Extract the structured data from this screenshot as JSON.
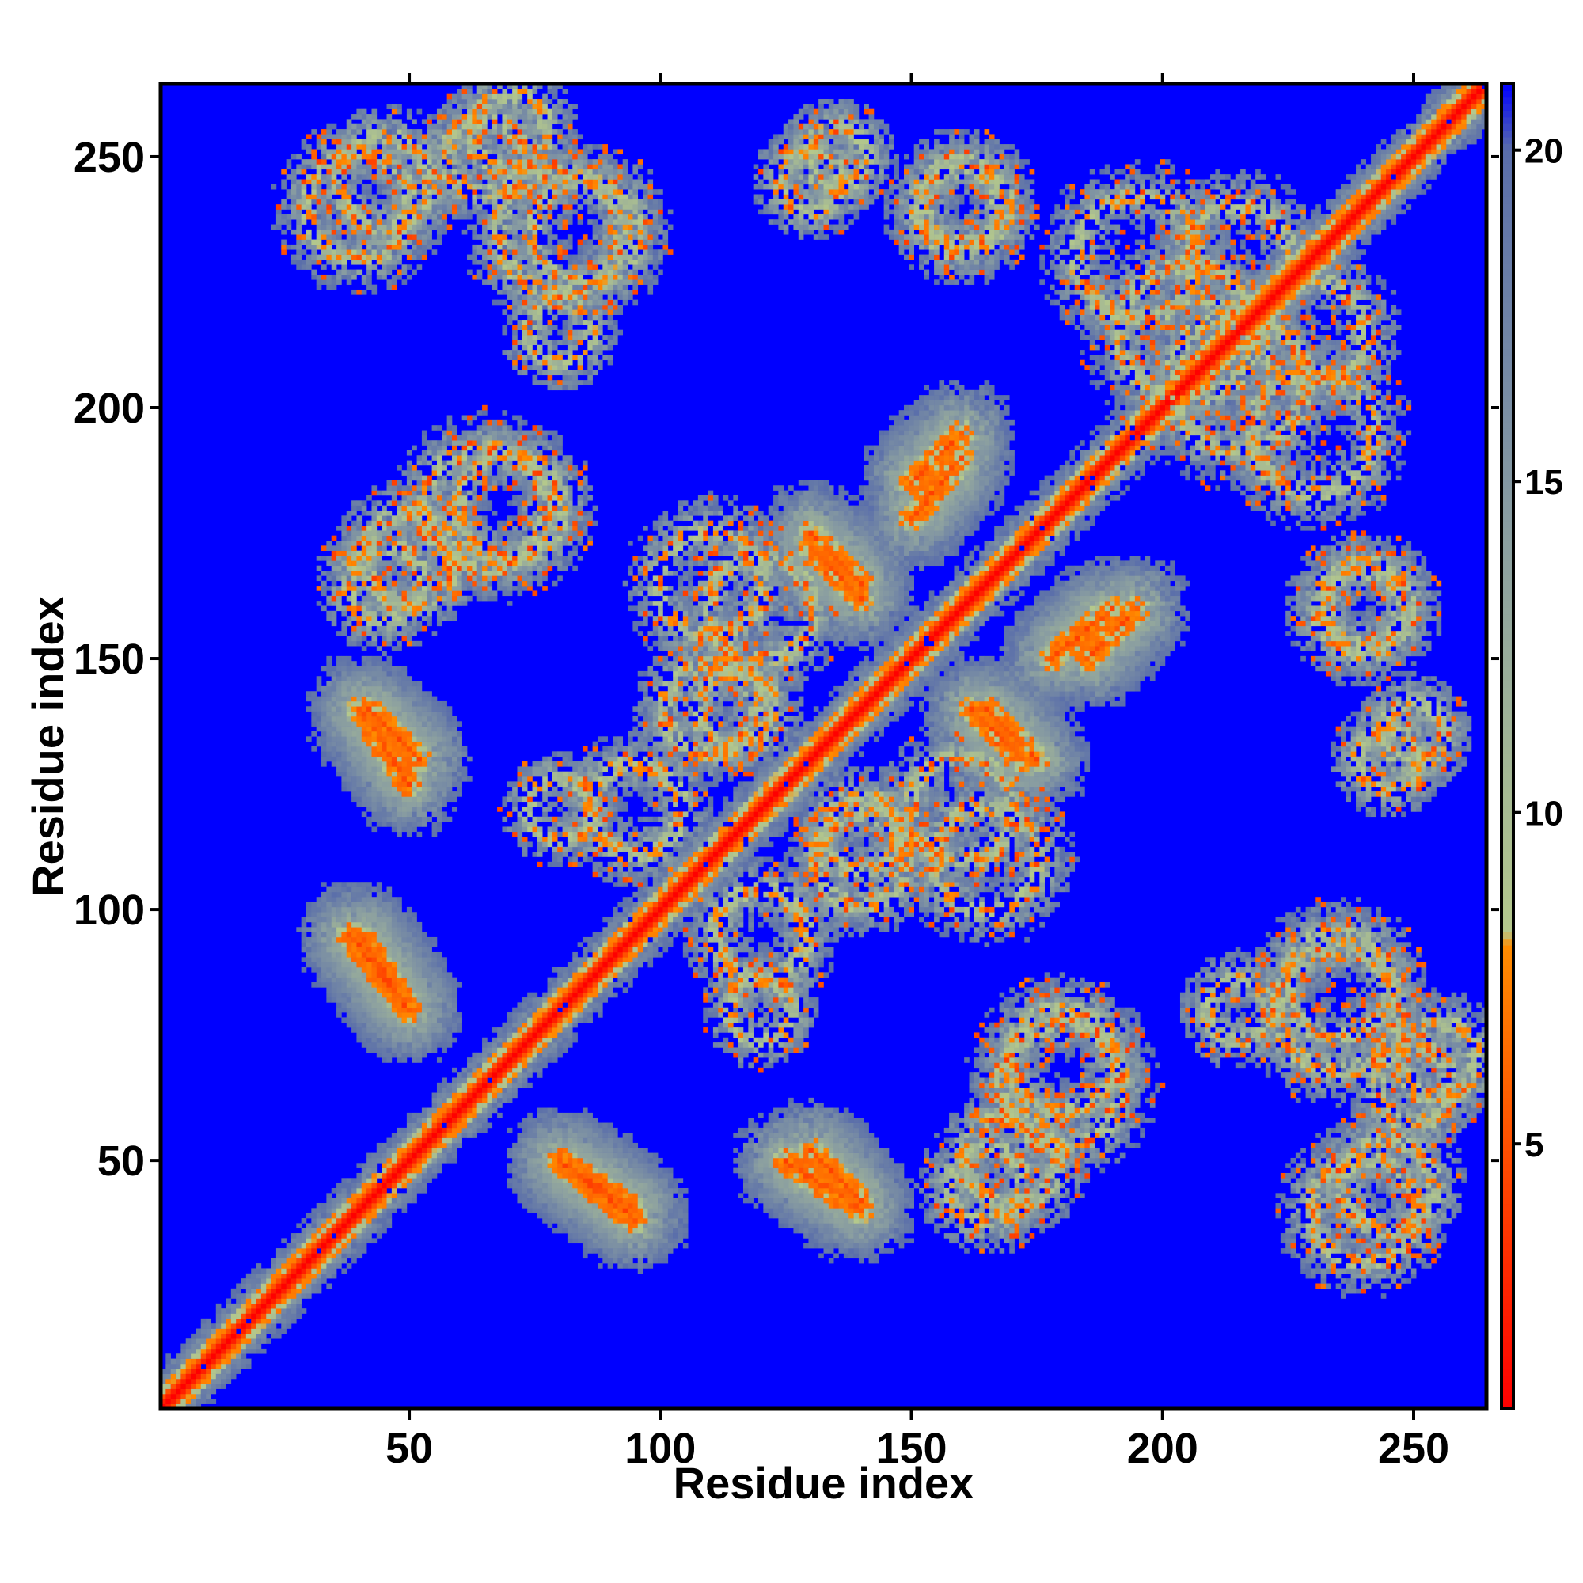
{
  "chart_data": {
    "type": "heatmap",
    "title": "",
    "xlabel": "Residue index",
    "ylabel": "Residue index",
    "xlim": [
      1,
      264
    ],
    "ylim": [
      1,
      264
    ],
    "x_ticks": [
      50,
      100,
      150,
      200,
      250
    ],
    "y_ticks": [
      50,
      100,
      150,
      200,
      250
    ],
    "colorbar": {
      "range": [
        1,
        21
      ],
      "ticks": [
        5,
        10,
        15,
        20
      ],
      "stops": [
        {
          "value": 1,
          "color": "#ff0000"
        },
        {
          "value": 8,
          "color": "#ff8c00"
        },
        {
          "value": 8.2,
          "color": "#b4c88c"
        },
        {
          "value": 14,
          "color": "#8ca0a0"
        },
        {
          "value": 20,
          "color": "#5a6eaa"
        },
        {
          "value": 21,
          "color": "#0000ff"
        }
      ]
    },
    "background_value": 21,
    "symmetric": true,
    "contact_bands": [
      {
        "type": "diagonal",
        "from": 1,
        "to": 264
      },
      {
        "type": "anti",
        "x": [
          40,
          50
        ],
        "y": [
          80,
          95
        ]
      },
      {
        "type": "anti",
        "x": [
          40,
          50
        ],
        "y": [
          125,
          140
        ]
      },
      {
        "type": "anti",
        "x": [
          80,
          95
        ],
        "y": [
          38,
          50
        ]
      },
      {
        "type": "anti",
        "x": [
          130,
          140
        ],
        "y": [
          42,
          52
        ]
      },
      {
        "type": "anti",
        "x": [
          130,
          140
        ],
        "y": [
          162,
          172
        ]
      },
      {
        "type": "anti",
        "x": [
          165,
          175
        ],
        "y": [
          130,
          140
        ]
      },
      {
        "type": "parallel",
        "x": [
          150,
          160
        ],
        "y": [
          178,
          190
        ]
      },
      {
        "type": "parallel",
        "x": [
          185,
          195
        ],
        "y": [
          150,
          160
        ]
      }
    ],
    "contact_patches": [
      {
        "cx": 45,
        "cy": 245,
        "r": 12
      },
      {
        "cx": 70,
        "cy": 255,
        "r": 10
      },
      {
        "cx": 85,
        "cy": 235,
        "r": 14
      },
      {
        "cx": 135,
        "cy": 250,
        "r": 8
      },
      {
        "cx": 160,
        "cy": 240,
        "r": 10
      },
      {
        "cx": 195,
        "cy": 230,
        "r": 16
      },
      {
        "cx": 215,
        "cy": 205,
        "r": 18
      },
      {
        "cx": 230,
        "cy": 215,
        "r": 14
      },
      {
        "cx": 70,
        "cy": 180,
        "r": 14
      },
      {
        "cx": 45,
        "cy": 165,
        "r": 10
      },
      {
        "cx": 120,
        "cy": 160,
        "r": 14
      },
      {
        "cx": 165,
        "cy": 110,
        "r": 14
      },
      {
        "cx": 140,
        "cy": 110,
        "r": 12
      },
      {
        "cx": 95,
        "cy": 120,
        "r": 12
      },
      {
        "cx": 115,
        "cy": 140,
        "r": 10
      },
      {
        "cx": 180,
        "cy": 65,
        "r": 16
      },
      {
        "cx": 170,
        "cy": 50,
        "r": 12
      },
      {
        "cx": 235,
        "cy": 80,
        "r": 16
      },
      {
        "cx": 250,
        "cy": 65,
        "r": 10
      },
      {
        "cx": 240,
        "cy": 40,
        "r": 14
      },
      {
        "cx": 240,
        "cy": 160,
        "r": 12
      },
      {
        "cx": 245,
        "cy": 130,
        "r": 8
      },
      {
        "cx": 215,
        "cy": 80,
        "r": 8
      },
      {
        "cx": 120,
        "cy": 80,
        "r": 8
      }
    ]
  }
}
